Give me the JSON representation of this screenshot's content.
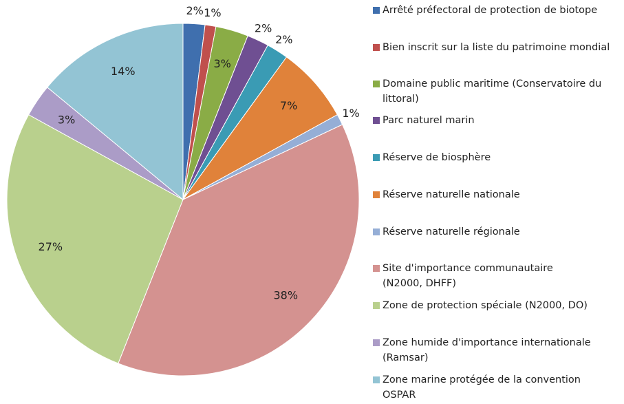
{
  "chart_data": {
    "type": "pie",
    "categories": [
      "Arrêté préfectoral de protection de biotope",
      "Bien inscrit sur la liste du patrimoine mondial",
      "Domaine public maritime (Conservatoire du\nlittoral)",
      "Parc naturel marin",
      "Réserve de biosphère",
      "Réserve naturelle nationale",
      "Réserve naturelle régionale",
      "Site d'importance communautaire\n(N2000, DHFF)",
      "Zone de protection spéciale (N2000, DO)",
      "Zone humide d'importance internationale\n(Ramsar)",
      "Zone marine protégée de la convention\nOSPAR"
    ],
    "values": [
      2,
      1,
      3,
      2,
      2,
      7,
      1,
      38,
      27,
      3,
      14
    ],
    "value_labels": [
      "2%",
      "1%",
      "3%",
      "2%",
      "2%",
      "7%",
      "1%",
      "38%",
      "27%",
      "3%",
      "14%"
    ],
    "colors": [
      "#3f6fae",
      "#c0504d",
      "#8aac46",
      "#6f4f92",
      "#3a9bb4",
      "#e0823a",
      "#95aed6",
      "#d49290",
      "#b9d08d",
      "#ab9cc7",
      "#93c4d4"
    ],
    "legend": "right"
  }
}
